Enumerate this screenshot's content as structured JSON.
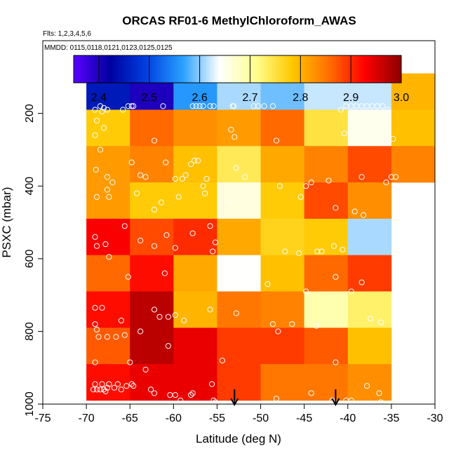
{
  "chart_data": {
    "type": "heatmap",
    "title": "ORCAS RF01-6 MethylChloroform_AWAS",
    "flights_note": "Flts: 1,2,3,4,5,6",
    "dates_note": "MMDD: 0115,0118,0121,0123,0125,0125",
    "xlabel": "Latitude (deg N)",
    "ylabel": "PSXC (mbar)",
    "xlim": [
      -75,
      -30
    ],
    "ylim": [
      1000,
      0
    ],
    "x_ticks": [
      -75,
      -70,
      -65,
      -60,
      -55,
      -50,
      -45,
      -40,
      -35,
      -30
    ],
    "y_ticks": [
      200,
      400,
      600,
      800,
      1000
    ],
    "x_edges": [
      -70,
      -65,
      -60,
      -55,
      -50,
      -45,
      -40,
      -35,
      -30
    ],
    "y_edges": [
      90,
      190,
      290,
      390,
      490,
      590,
      690,
      790,
      890,
      990
    ],
    "colorbar": {
      "min": 2.35,
      "max": 3.0,
      "ticks": [
        2.4,
        2.5,
        2.6,
        2.7,
        2.8,
        2.9,
        3.0
      ],
      "stops": [
        "#5a00ff",
        "#0000a0",
        "#0040e0",
        "#2aa0ff",
        "#ffffff",
        "#ffff90",
        "#ffc800",
        "#ff7000",
        "#ff0000",
        "#8b0000"
      ]
    },
    "cells": [
      [
        2.45,
        2.4,
        2.56,
        2.61,
        2.59,
        2.62,
        2.62,
        2.8
      ],
      [
        2.78,
        2.86,
        2.83,
        2.82,
        2.86,
        2.75,
        2.65,
        2.79
      ],
      [
        2.82,
        2.84,
        2.79,
        2.74,
        2.81,
        2.84,
        2.88,
        2.84
      ],
      [
        2.82,
        2.78,
        2.78,
        2.66,
        2.78,
        2.88,
        2.83,
        null
      ],
      [
        2.93,
        2.88,
        2.9,
        2.81,
        2.77,
        2.78,
        2.61,
        null
      ],
      [
        2.86,
        2.92,
        2.81,
        2.64,
        2.79,
        2.86,
        2.89,
        null
      ],
      [
        2.92,
        2.97,
        2.8,
        2.85,
        2.84,
        2.69,
        2.73,
        null
      ],
      [
        2.87,
        2.97,
        2.94,
        2.89,
        2.89,
        2.87,
        2.79,
        null
      ],
      [
        2.92,
        2.94,
        2.94,
        2.89,
        2.85,
        2.85,
        2.83,
        null
      ]
    ],
    "points": [
      [
        -69.0,
        190
      ],
      [
        -68.4,
        180
      ],
      [
        -68.2,
        195
      ],
      [
        -68.0,
        185
      ],
      [
        -67.6,
        190
      ],
      [
        -65.8,
        190
      ],
      [
        -65.2,
        180
      ],
      [
        -64.8,
        180
      ],
      [
        -64.6,
        180
      ],
      [
        -61.2,
        180
      ],
      [
        -57.8,
        180
      ],
      [
        -57.4,
        180
      ],
      [
        -57.0,
        180
      ],
      [
        -56.6,
        180
      ],
      [
        -55.8,
        180
      ],
      [
        -55.4,
        180
      ],
      [
        -53.2,
        180
      ],
      [
        -53.1,
        180
      ],
      [
        -50.8,
        180
      ],
      [
        -50.3,
        180
      ],
      [
        -49.6,
        180
      ],
      [
        -48.6,
        180
      ],
      [
        -40.8,
        190
      ],
      [
        -40.2,
        180
      ],
      [
        -39.6,
        180
      ],
      [
        -39.0,
        180
      ],
      [
        -38.4,
        180
      ],
      [
        -37.8,
        180
      ],
      [
        -37.2,
        180
      ],
      [
        -36.6,
        180
      ],
      [
        -36.0,
        180
      ],
      [
        -35.4,
        190
      ],
      [
        -68.8,
        220
      ],
      [
        -68.0,
        240
      ],
      [
        -69.0,
        260
      ],
      [
        -68.4,
        300
      ],
      [
        -62.2,
        275
      ],
      [
        -53.4,
        245
      ],
      [
        -53.0,
        265
      ],
      [
        -48.2,
        275
      ],
      [
        -40.4,
        255
      ],
      [
        -34.8,
        270
      ],
      [
        -68.9,
        355
      ],
      [
        -67.6,
        375
      ],
      [
        -67.0,
        390
      ],
      [
        -64.8,
        335
      ],
      [
        -63.8,
        370
      ],
      [
        -63.2,
        375
      ],
      [
        -60.9,
        335
      ],
      [
        -59.8,
        380
      ],
      [
        -59.0,
        380
      ],
      [
        -58.6,
        370
      ],
      [
        -58.0,
        340
      ],
      [
        -57.6,
        330
      ],
      [
        -57.2,
        330
      ],
      [
        -56.6,
        400
      ],
      [
        -56.2,
        380
      ],
      [
        -52.8,
        350
      ],
      [
        -51.8,
        375
      ],
      [
        -47.8,
        400
      ],
      [
        -44.8,
        400
      ],
      [
        -44.2,
        390
      ],
      [
        -42.2,
        385
      ],
      [
        -38.4,
        375
      ],
      [
        -35.6,
        390
      ],
      [
        -35.0,
        375
      ],
      [
        -34.5,
        375
      ],
      [
        -68.8,
        430
      ],
      [
        -67.6,
        410
      ],
      [
        -67.4,
        430
      ],
      [
        -64.2,
        420
      ],
      [
        -62.2,
        465
      ],
      [
        -61.4,
        445
      ],
      [
        -59.4,
        430
      ],
      [
        -56.4,
        420
      ],
      [
        -53.6,
        445
      ],
      [
        -45.4,
        430
      ],
      [
        -41.4,
        460
      ],
      [
        -39.2,
        470
      ],
      [
        -38.2,
        480
      ],
      [
        -69.0,
        540
      ],
      [
        -68.8,
        565
      ],
      [
        -67.8,
        560
      ],
      [
        -67.4,
        595
      ],
      [
        -65.6,
        510
      ],
      [
        -63.8,
        550
      ],
      [
        -62.2,
        565
      ],
      [
        -60.8,
        535
      ],
      [
        -59.8,
        570
      ],
      [
        -57.8,
        530
      ],
      [
        -55.8,
        510
      ],
      [
        -55.5,
        580
      ],
      [
        -55.2,
        555
      ],
      [
        -47.2,
        580
      ],
      [
        -45.6,
        585
      ],
      [
        -43.5,
        580
      ],
      [
        -43.0,
        580
      ],
      [
        -41.6,
        565
      ],
      [
        -40.6,
        575
      ],
      [
        -65.2,
        650
      ],
      [
        -61.0,
        640
      ],
      [
        -54.4,
        620
      ],
      [
        -52.2,
        670
      ],
      [
        -49.2,
        670
      ],
      [
        -44.8,
        690
      ],
      [
        -41.4,
        650
      ],
      [
        -39.6,
        690
      ],
      [
        -38.4,
        665
      ],
      [
        -69.0,
        735
      ],
      [
        -69.0,
        780
      ],
      [
        -68.8,
        795
      ],
      [
        -68.6,
        815
      ],
      [
        -68.2,
        735
      ],
      [
        -67.6,
        815
      ],
      [
        -66.6,
        815
      ],
      [
        -66.0,
        770
      ],
      [
        -65.6,
        810
      ],
      [
        -63.8,
        800
      ],
      [
        -62.2,
        740
      ],
      [
        -61.6,
        760
      ],
      [
        -60.6,
        760
      ],
      [
        -59.8,
        755
      ],
      [
        -58.8,
        770
      ],
      [
        -55.8,
        740
      ],
      [
        -52.8,
        750
      ],
      [
        -48.6,
        780
      ],
      [
        -48.0,
        800
      ],
      [
        -46.4,
        780
      ],
      [
        -43.6,
        785
      ],
      [
        -37.4,
        765
      ],
      [
        -36.2,
        775
      ],
      [
        -69.0,
        885
      ],
      [
        -65.0,
        885
      ],
      [
        -63.2,
        905
      ],
      [
        -60.6,
        840
      ],
      [
        -54.4,
        880
      ],
      [
        -41.4,
        885
      ],
      [
        -69.2,
        960
      ],
      [
        -69.0,
        945
      ],
      [
        -68.8,
        960
      ],
      [
        -68.4,
        960
      ],
      [
        -68.2,
        945
      ],
      [
        -68.0,
        960
      ],
      [
        -67.8,
        965
      ],
      [
        -67.6,
        955
      ],
      [
        -67.4,
        945
      ],
      [
        -66.8,
        955
      ],
      [
        -66.4,
        945
      ],
      [
        -66.0,
        960
      ],
      [
        -65.4,
        950
      ],
      [
        -64.8,
        945
      ],
      [
        -64.6,
        950
      ],
      [
        -62.6,
        960
      ],
      [
        -62.2,
        970
      ],
      [
        -60.4,
        975
      ],
      [
        -59.8,
        975
      ],
      [
        -59.2,
        990
      ],
      [
        -58.0,
        975
      ],
      [
        -57.8,
        970
      ],
      [
        -55.6,
        945
      ],
      [
        -55.4,
        990
      ],
      [
        -55.2,
        995
      ],
      [
        -48.2,
        985
      ],
      [
        -44.2,
        970
      ],
      [
        -41.8,
        990
      ],
      [
        -40.2,
        990
      ],
      [
        -39.6,
        990
      ],
      [
        -37.8,
        950
      ],
      [
        -36.4,
        970
      ],
      [
        -36.2,
        995
      ]
    ],
    "arrows": [
      -53.0,
      -41.4
    ]
  }
}
